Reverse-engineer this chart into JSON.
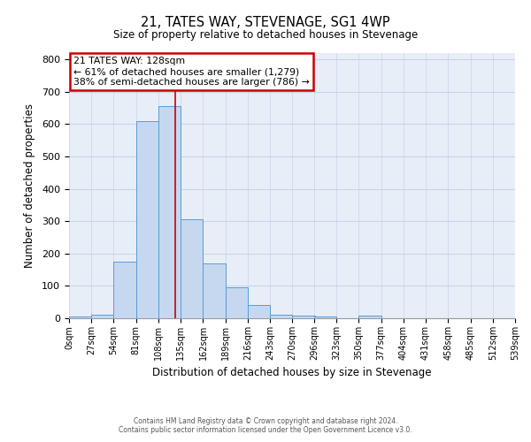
{
  "title": "21, TATES WAY, STEVENAGE, SG1 4WP",
  "subtitle": "Size of property relative to detached houses in Stevenage",
  "xlabel": "Distribution of detached houses by size in Stevenage",
  "ylabel": "Number of detached properties",
  "bar_color": "#c5d8f0",
  "bar_edge_color": "#5b9bd5",
  "grid_color": "#c8d4e8",
  "background_color": "#e8eef8",
  "annotation_box_color": "#cc0000",
  "vline_color": "#cc0000",
  "vline_x": 128,
  "bin_edges": [
    0,
    27,
    54,
    81,
    108,
    135,
    162,
    189,
    216,
    243,
    270,
    296,
    323,
    350,
    377,
    404,
    431,
    458,
    485,
    512,
    539
  ],
  "bar_heights": [
    5,
    12,
    175,
    610,
    655,
    305,
    170,
    97,
    40,
    12,
    8,
    5,
    0,
    8,
    0,
    0,
    0,
    0,
    0,
    0
  ],
  "ylim": [
    0,
    820
  ],
  "yticks": [
    0,
    100,
    200,
    300,
    400,
    500,
    600,
    700,
    800
  ],
  "annotation_title": "21 TATES WAY: 128sqm",
  "annotation_line1": "← 61% of detached houses are smaller (1,279)",
  "annotation_line2": "38% of semi-detached houses are larger (786) →",
  "footer_line1": "Contains HM Land Registry data © Crown copyright and database right 2024.",
  "footer_line2": "Contains public sector information licensed under the Open Government Licence v3.0."
}
